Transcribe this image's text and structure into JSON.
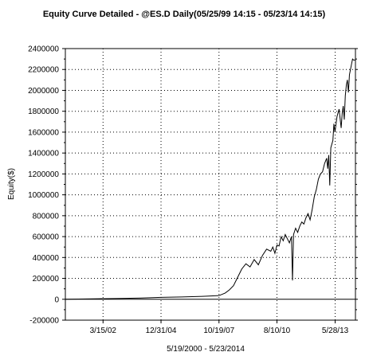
{
  "chart_data": {
    "type": "line",
    "title": "Equity Curve Detailed - @ES.D Daily(05/25/99 14:15 - 05/23/14 14:15)",
    "xlabel": "5/19/2000 - 5/23/2014",
    "ylabel": "Equity($)",
    "xlim": [
      2000.38,
      2014.39
    ],
    "ylim": [
      -200000,
      2400000
    ],
    "y_ticks": [
      -200000,
      0,
      200000,
      400000,
      600000,
      800000,
      1000000,
      1200000,
      1400000,
      1600000,
      1800000,
      2000000,
      2200000,
      2400000
    ],
    "y_tick_labels": [
      "-200000",
      "0",
      "200000",
      "400000",
      "600000",
      "800000",
      "1000000",
      "1200000",
      "1400000",
      "1600000",
      "1800000",
      "2000000",
      "2200000",
      "2400000"
    ],
    "x_ticks": [
      {
        "label": "3/15/02",
        "x": 2002.2
      },
      {
        "label": "12/31/04",
        "x": 2005.0
      },
      {
        "label": "10/19/07",
        "x": 2007.8
      },
      {
        "label": "8/10/10",
        "x": 2010.6
      },
      {
        "label": "5/28/13",
        "x": 2013.41
      }
    ],
    "grid": true,
    "zero_line": true,
    "series": [
      {
        "color": "#000000",
        "x": [
          2000.38,
          2001.0,
          2002.0,
          2003.0,
          2004.0,
          2005.0,
          2006.0,
          2007.0,
          2007.8,
          2008.1,
          2008.3,
          2008.5,
          2008.7,
          2008.9,
          2009.1,
          2009.3,
          2009.5,
          2009.7,
          2009.9,
          2010.1,
          2010.3,
          2010.4,
          2010.5,
          2010.6,
          2010.7,
          2010.8,
          2010.9,
          2011.0,
          2011.1,
          2011.2,
          2011.3,
          2011.35,
          2011.4,
          2011.45,
          2011.5,
          2011.6,
          2011.7,
          2011.8,
          2011.9,
          2012.0,
          2012.1,
          2012.2,
          2012.3,
          2012.4,
          2012.5,
          2012.6,
          2012.7,
          2012.8,
          2012.9,
          2013.0,
          2013.05,
          2013.1,
          2013.15,
          2013.2,
          2013.3,
          2013.35,
          2013.4,
          2013.5,
          2013.6,
          2013.7,
          2013.75,
          2013.8,
          2013.85,
          2013.9,
          2013.95,
          2014.0,
          2014.05,
          2014.1,
          2014.15,
          2014.2,
          2014.25,
          2014.3,
          2014.39
        ],
        "y": [
          0,
          2000,
          5000,
          8000,
          12000,
          18000,
          22000,
          28000,
          35000,
          60000,
          90000,
          130000,
          210000,
          290000,
          340000,
          310000,
          380000,
          330000,
          420000,
          480000,
          460000,
          500000,
          440000,
          520000,
          510000,
          600000,
          560000,
          620000,
          580000,
          540000,
          600000,
          180000,
          620000,
          650000,
          680000,
          640000,
          700000,
          740000,
          720000,
          780000,
          820000,
          760000,
          860000,
          980000,
          1050000,
          1150000,
          1200000,
          1220000,
          1300000,
          1350000,
          1250000,
          1380000,
          1090000,
          1450000,
          1520000,
          1680000,
          1600000,
          1750000,
          1820000,
          1640000,
          1780000,
          1850000,
          1720000,
          1950000,
          2050000,
          2100000,
          1980000,
          2150000,
          2200000,
          2250000,
          2300000,
          2290000,
          2290000
        ]
      }
    ]
  }
}
